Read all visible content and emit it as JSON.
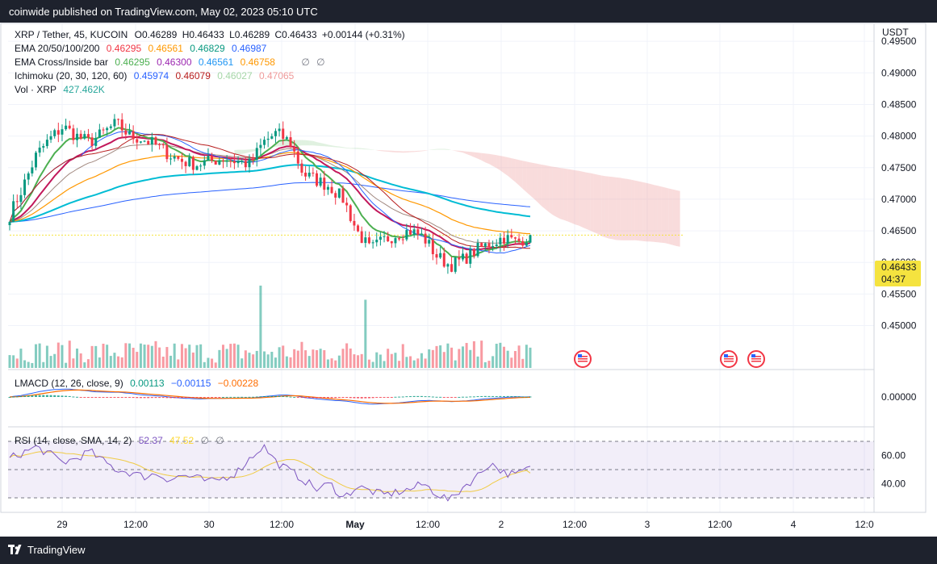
{
  "header": {
    "publisher_line": "coinwide published on TradingView.com, May 02, 2023 05:10 UTC"
  },
  "footer": {
    "brand": "TradingView"
  },
  "legend": {
    "main": {
      "symbol": "XRP / Tether, 45, KUCOIN",
      "o": "O0.46289",
      "h": "H0.46433",
      "l": "L0.46289",
      "c": "C0.46433",
      "chg": "+0.00144 (+0.31%)"
    },
    "ema": {
      "label": "EMA 20/50/100/200",
      "v1": "0.46295",
      "v2": "0.46561",
      "v3": "0.46829",
      "v4": "0.46987"
    },
    "emacross": {
      "label": "EMA Cross/Inside bar",
      "v1": "0.46295",
      "v2": "0.46300",
      "v3": "0.46561",
      "v4": "0.46758",
      "na1": "∅",
      "na2": "∅"
    },
    "ichimoku": {
      "label": "Ichimoku (20, 30, 120, 60)",
      "v1": "0.45974",
      "v2": "0.46079",
      "v3": "0.46027",
      "v4": "0.47065"
    },
    "vol": {
      "label": "Vol · XRP",
      "v1": "427.462K"
    },
    "macd": {
      "label": "LMACD (12, 26, close, 9)",
      "v1": "0.00113",
      "v2": "−0.00115",
      "v3": "−0.00228"
    },
    "rsi": {
      "label": "RSI (14, close, SMA, 14, 2)",
      "v1": "52.37",
      "v2": "47.52",
      "na1": "∅",
      "na2": "∅"
    }
  },
  "price_axis": {
    "currency": "USDT",
    "current_price": "0.46433",
    "countdown": "04:37"
  },
  "colors": {
    "up": "#089981",
    "down": "#f23645",
    "ema20": "#4caf50",
    "ema50": "#ff9800",
    "ema100": "#00bcd4",
    "ema200": "#2962ff",
    "tenkan": "#2962ff",
    "kijun": "#b71c1c",
    "cloud_up": "#a5d6a7",
    "cloud_down": "#ef9a9a",
    "macd": "#2962ff",
    "signal": "#ff6d00",
    "rsi": "#7e57c2",
    "rsi_ma": "#fdd835"
  },
  "chart_data": [
    {
      "type": "candlestick",
      "title": "XRP / Tether, 45, KUCOIN",
      "ylabel": "USDT",
      "ylim": [
        0.4433,
        0.4977
      ],
      "yticks": [
        "0.49500",
        "0.49000",
        "0.48500",
        "0.48000",
        "0.47500",
        "0.47000",
        "0.46500",
        "0.46000",
        "0.45500",
        "0.45000"
      ],
      "x_ticks": [
        "29",
        "12:00",
        "30",
        "12:00",
        "May",
        "12:00",
        "2",
        "12:00",
        "3",
        "12:00",
        "4",
        "12:0"
      ],
      "last_close": 0.46433,
      "price_path": [
        0.4675,
        0.472,
        0.477,
        0.4795,
        0.4815,
        0.48,
        0.479,
        0.4805,
        0.482,
        0.48,
        0.4795,
        0.4785,
        0.477,
        0.476,
        0.4755,
        0.476,
        0.4765,
        0.476,
        0.4755,
        0.479,
        0.4805,
        0.479,
        0.474,
        0.473,
        0.472,
        0.47,
        0.465,
        0.462,
        0.4635,
        0.4645,
        0.465,
        0.464,
        0.461,
        0.4595,
        0.4605,
        0.462,
        0.463,
        0.464,
        0.4632,
        0.4643
      ],
      "events": [
        "US economic event",
        "US economic event",
        "US economic event"
      ]
    },
    {
      "type": "bar",
      "title": "Vol · XRP",
      "last_value": "427.462K"
    },
    {
      "type": "line",
      "title": "LMACD (12, 26, close, 9)",
      "yticks": [
        "0.00000"
      ],
      "series": [
        {
          "name": "MACD",
          "last": -0.00115
        },
        {
          "name": "Signal",
          "last": -0.00228
        },
        {
          "name": "Histogram",
          "last": 0.00113
        }
      ]
    },
    {
      "type": "line",
      "title": "RSI (14, close, SMA, 14, 2)",
      "ylim": [
        26,
        74
      ],
      "yticks": [
        "60.00",
        "40.00"
      ],
      "bands": [
        70,
        50,
        30
      ],
      "series": [
        {
          "name": "RSI",
          "values": [
            58,
            62,
            66,
            61,
            55,
            58,
            63,
            56,
            50,
            48,
            45,
            47,
            43,
            46,
            44,
            41,
            44,
            48,
            58,
            67,
            55,
            49,
            43,
            36,
            40,
            30,
            38,
            35,
            32,
            34,
            36,
            40,
            33,
            28,
            38,
            45,
            55,
            48,
            46,
            52.37
          ]
        },
        {
          "name": "RSI MA",
          "last": 47.52
        }
      ]
    }
  ]
}
